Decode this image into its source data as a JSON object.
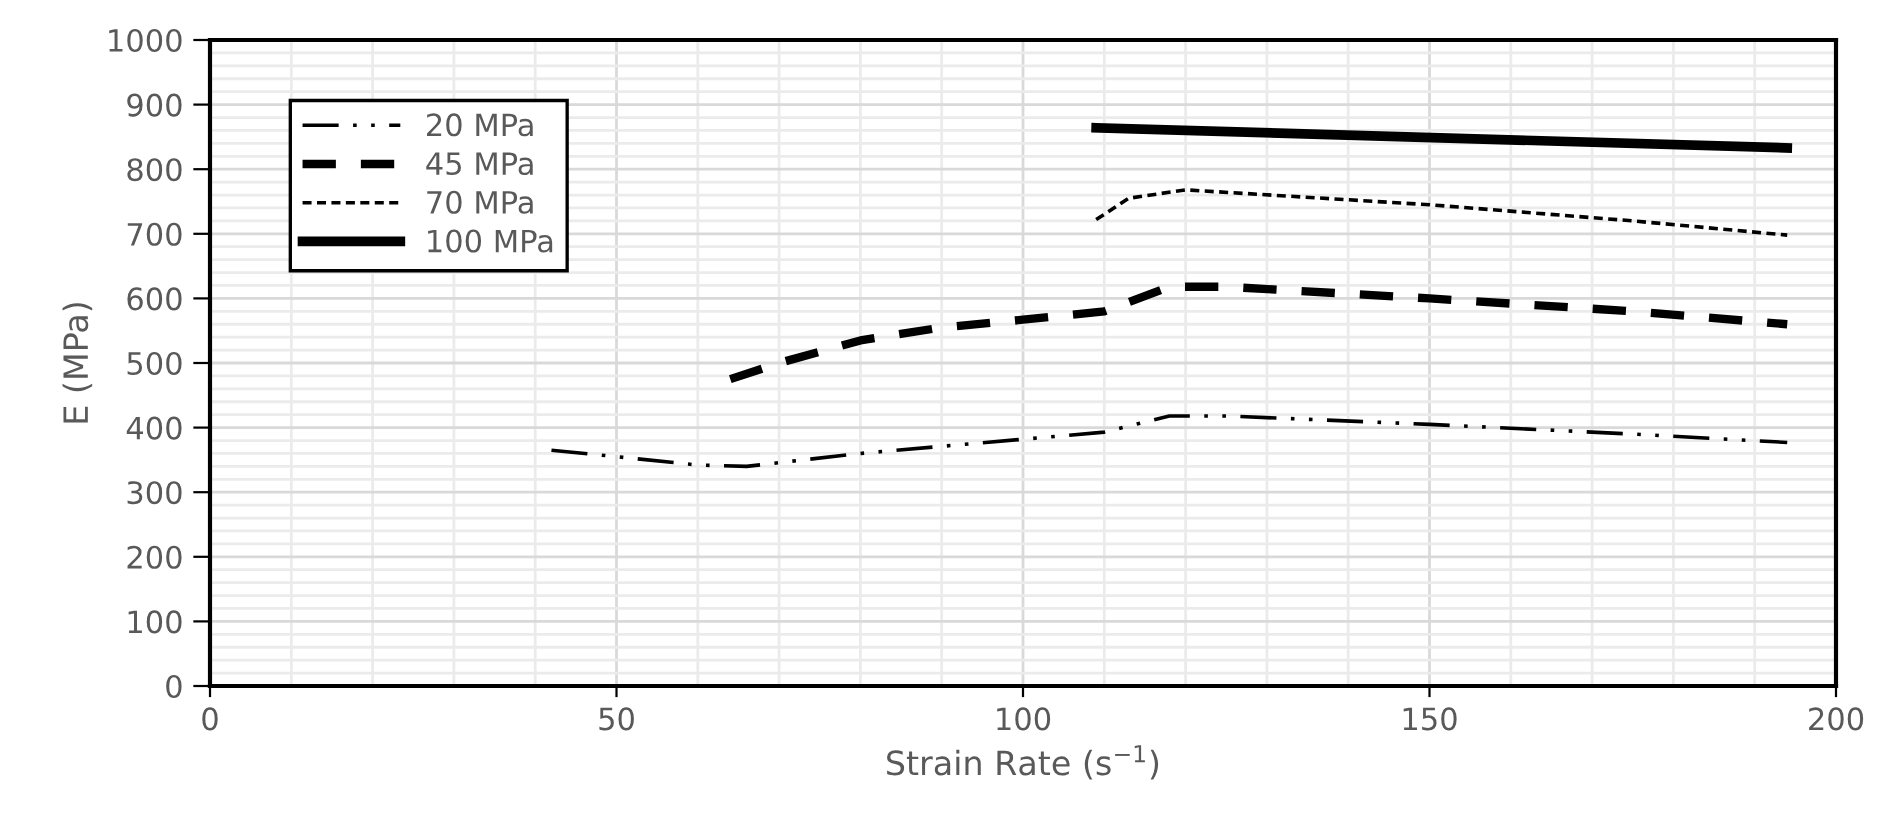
{
  "chart_data": {
    "type": "line",
    "xlabel": "Strain Rate (s$^{−1}$)",
    "ylabel": "E (MPa)",
    "xlim": [
      0,
      200
    ],
    "xticks": [
      0,
      50,
      100,
      150,
      200
    ],
    "ylim": [
      0,
      1000
    ],
    "yticks": [
      0,
      100,
      200,
      300,
      400,
      500,
      600,
      700,
      800,
      900,
      1000
    ],
    "grid": true,
    "legend": "top left",
    "marker": "none",
    "series": [
      {
        "name": "20 MPa",
        "color": "#000000",
        "line_style": "dashdot",
        "x": [
          42,
          50,
          60,
          66,
          80,
          100,
          110,
          118,
          125,
          150,
          175,
          194
        ],
        "values": [
          365,
          355,
          342,
          340,
          360,
          382,
          393,
          418,
          418,
          405,
          390,
          377
        ]
      },
      {
        "name": "45 MPa",
        "color": "#000000",
        "line_style": "dashed",
        "x": [
          64,
          70,
          80,
          90,
          100,
          110,
          118,
          125,
          150,
          175,
          194
        ],
        "values": [
          475,
          500,
          535,
          555,
          567,
          580,
          618,
          618,
          600,
          580,
          560
        ]
      },
      {
        "name": "70 MPa",
        "color": "#000000",
        "line_style": "dotted",
        "x": [
          109,
          113,
          120,
          150,
          175,
          194
        ],
        "values": [
          722,
          755,
          768,
          745,
          720,
          698
        ]
      },
      {
        "name": "100 MPa",
        "color": "#000000",
        "line_style": "solid",
        "x": [
          109,
          194
        ],
        "values": [
          864,
          833
        ]
      }
    ]
  }
}
